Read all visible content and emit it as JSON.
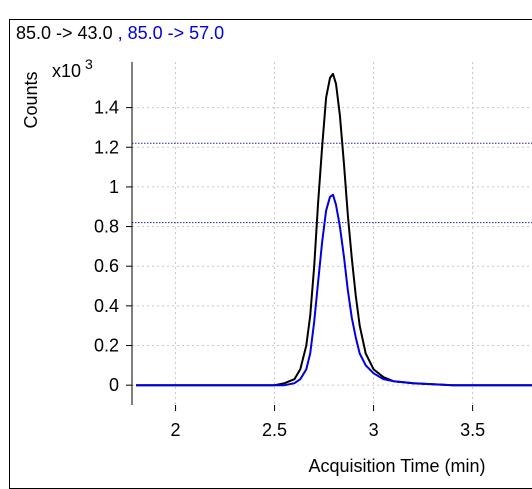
{
  "chart_data": {
    "type": "line",
    "title_parts": [
      {
        "text": "85.0 -> 43.0",
        "color": "#000000"
      },
      {
        "text": " , 85.0 -> 57.0",
        "color": "#0000e0"
      }
    ],
    "xlabel": "Acquisition Time (min)",
    "ylabel": "Counts",
    "y_multiplier": "x10",
    "y_multiplier_exp": "3",
    "xlim": [
      1.78,
      3.8
    ],
    "ylim": [
      -0.1,
      1.63
    ],
    "x_ticks": [
      2,
      2.5,
      3,
      3.5
    ],
    "x_tick_labels": [
      "2",
      "2.5",
      "3",
      "3.5"
    ],
    "y_ticks": [
      0,
      0.2,
      0.4,
      0.6,
      0.8,
      1.0,
      1.2,
      1.4
    ],
    "y_tick_labels": [
      "0",
      "0.2",
      "0.4",
      "0.6",
      "0.8",
      "1",
      "1.2",
      "1.4"
    ],
    "grid": true,
    "reference_lines_y": [
      1.22,
      0.82
    ],
    "series": [
      {
        "name": "85.0 -> 43.0",
        "color": "#000000",
        "x": [
          1.8,
          2.0,
          2.2,
          2.4,
          2.5,
          2.55,
          2.6,
          2.63,
          2.66,
          2.68,
          2.7,
          2.72,
          2.74,
          2.76,
          2.78,
          2.795,
          2.81,
          2.83,
          2.85,
          2.87,
          2.89,
          2.91,
          2.93,
          2.96,
          3.0,
          3.05,
          3.1,
          3.2,
          3.4,
          3.6,
          3.8
        ],
        "y": [
          0.0,
          0.0,
          0.0,
          0.0,
          0.0,
          0.01,
          0.03,
          0.08,
          0.2,
          0.35,
          0.6,
          0.92,
          1.2,
          1.45,
          1.55,
          1.57,
          1.52,
          1.36,
          1.12,
          0.86,
          0.64,
          0.45,
          0.3,
          0.16,
          0.08,
          0.04,
          0.02,
          0.01,
          0.0,
          0.0,
          0.0
        ]
      },
      {
        "name": "85.0 -> 57.0",
        "color": "#0000e0",
        "x": [
          1.8,
          2.0,
          2.2,
          2.4,
          2.5,
          2.55,
          2.6,
          2.63,
          2.66,
          2.68,
          2.7,
          2.72,
          2.74,
          2.76,
          2.78,
          2.795,
          2.81,
          2.83,
          2.85,
          2.87,
          2.89,
          2.91,
          2.93,
          2.96,
          3.0,
          3.05,
          3.1,
          3.2,
          3.4,
          3.6,
          3.8
        ],
        "y": [
          0.0,
          0.0,
          0.0,
          0.0,
          0.0,
          0.0,
          0.01,
          0.03,
          0.08,
          0.16,
          0.32,
          0.52,
          0.72,
          0.88,
          0.95,
          0.96,
          0.91,
          0.8,
          0.65,
          0.48,
          0.34,
          0.24,
          0.16,
          0.1,
          0.06,
          0.03,
          0.02,
          0.01,
          0.0,
          0.0,
          0.0
        ]
      }
    ]
  }
}
